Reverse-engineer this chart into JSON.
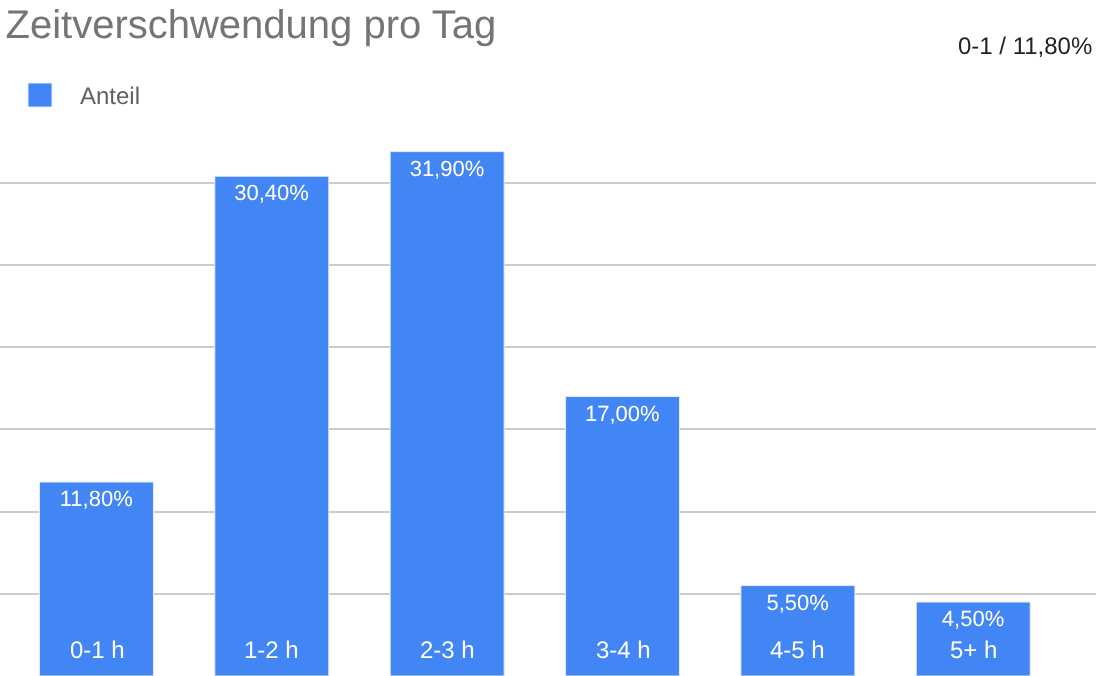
{
  "chart_data": {
    "type": "bar",
    "title": "Zeitverschwendung pro Tag",
    "categories": [
      "0-1 h",
      "1-2 h",
      "2-3 h",
      "3-4 h",
      "4-5 h",
      "5+ h"
    ],
    "series": [
      {
        "name": "Anteil",
        "color": "#4285f4",
        "values": [
          11.8,
          30.4,
          31.9,
          17.0,
          5.5,
          4.5
        ],
        "value_labels": [
          "11,80%",
          "30,40%",
          "31,90%",
          "17,00%",
          "5,50%",
          "4,50%"
        ]
      }
    ],
    "grid": "y",
    "legend": "top left",
    "tick_labels": "x",
    "annotations": [
      "0-1 / 11,80%"
    ]
  }
}
